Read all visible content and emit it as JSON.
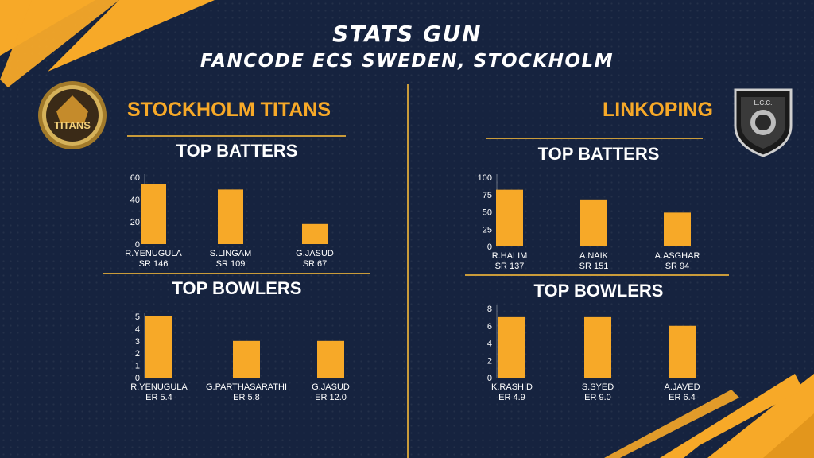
{
  "header": {
    "title": "STATS GUN",
    "subtitle": "FANCODE ECS SWEDEN, STOCKHOLM"
  },
  "colors": {
    "background": "#16233f",
    "accent": "#f7a928",
    "rule": "#c99b3a",
    "text": "#ffffff"
  },
  "teams": [
    {
      "name": "STOCKHOLM TITANS",
      "logo_icon": "titans-badge-icon",
      "logo_text": "TITANS",
      "batters_title": "TOP BATTERS",
      "bowlers_title": "TOP BOWLERS"
    },
    {
      "name": "LINKOPING",
      "logo_icon": "lion-shield-icon",
      "logo_text": "L.C.C.",
      "batters_title": "TOP BATTERS",
      "bowlers_title": "TOP BOWLERS"
    }
  ],
  "chart_data": [
    {
      "type": "bar",
      "team": "STOCKHOLM TITANS",
      "title": "TOP BATTERS",
      "categories": [
        "R.YENUGULA",
        "S.LINGAM",
        "G.JASUD"
      ],
      "sublabels": [
        "SR 146",
        "SR 109",
        "SR 67"
      ],
      "values": [
        54,
        49,
        18
      ],
      "ylim": [
        0,
        60
      ],
      "yticks": [
        0,
        20,
        40,
        60
      ],
      "grid": false,
      "bar_color": "#f7a928"
    },
    {
      "type": "bar",
      "team": "STOCKHOLM TITANS",
      "title": "TOP BOWLERS",
      "categories": [
        "R.YENUGULA",
        "G.PARTHASARATHI",
        "G.JASUD"
      ],
      "sublabels": [
        "ER 5.4",
        "ER 5.8",
        "ER 12.0"
      ],
      "values": [
        5,
        3,
        3
      ],
      "ylim": [
        0,
        5
      ],
      "yticks": [
        0,
        1,
        2,
        3,
        4,
        5
      ],
      "grid": false,
      "bar_color": "#f7a928"
    },
    {
      "type": "bar",
      "team": "LINKOPING",
      "title": "TOP BATTERS",
      "categories": [
        "R.HALIM",
        "A.NAIK",
        "A.ASGHAR"
      ],
      "sublabels": [
        "SR 137",
        "SR 151",
        "SR 94"
      ],
      "values": [
        82,
        68,
        49
      ],
      "ylim": [
        0,
        100
      ],
      "yticks": [
        0,
        25,
        50,
        75,
        100
      ],
      "grid": false,
      "bar_color": "#f7a928"
    },
    {
      "type": "bar",
      "team": "LINKOPING",
      "title": "TOP BOWLERS",
      "categories": [
        "K.RASHID",
        "S.SYED",
        "A.JAVED"
      ],
      "sublabels": [
        "ER 4.9",
        "ER 9.0",
        "ER 6.4"
      ],
      "values": [
        7,
        7,
        6
      ],
      "ylim": [
        0,
        8
      ],
      "yticks": [
        0,
        2,
        4,
        6,
        8
      ],
      "grid": false,
      "bar_color": "#f7a928"
    }
  ]
}
